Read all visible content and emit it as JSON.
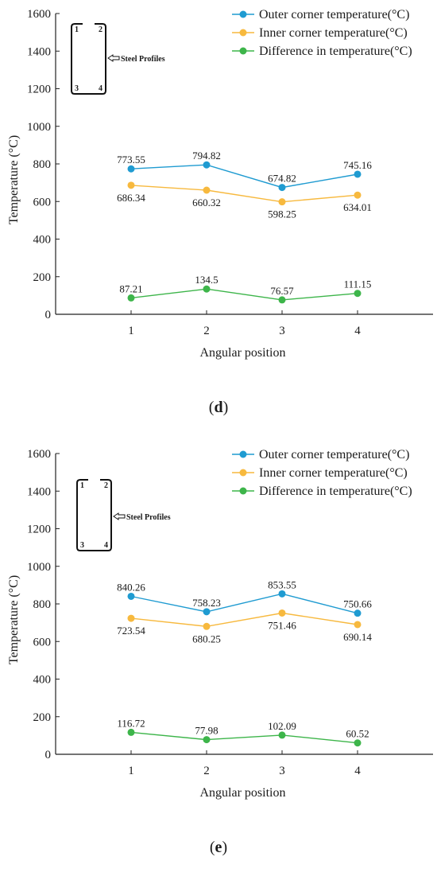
{
  "chart_data": [
    {
      "type": "line",
      "panel_label": "(d)",
      "panel_letter": "d",
      "xlabel": "Angular position",
      "ylabel": "Temperature (°C)",
      "x": [
        1,
        2,
        3,
        4
      ],
      "xlim": [
        0,
        5
      ],
      "ylim": [
        0,
        1600
      ],
      "yticks": [
        0,
        200,
        400,
        600,
        800,
        1000,
        1200,
        1400,
        1600
      ],
      "xticks": [
        1,
        2,
        3,
        4
      ],
      "legend_position": "top-right",
      "grid": false,
      "inset": {
        "label": "Steel Profiles",
        "corners": [
          "1",
          "2",
          "3",
          "4"
        ]
      },
      "series": [
        {
          "name": "Outer corner temperature(°C)",
          "color": "#1f9bd1",
          "values": [
            773.55,
            794.82,
            674.82,
            745.16
          ],
          "labels": [
            "773.55",
            "794.82",
            "674.82",
            "745.16"
          ],
          "label_pos": "above"
        },
        {
          "name": "Inner corner temperature(°C)",
          "color": "#f7b93e",
          "values": [
            686.34,
            660.32,
            598.25,
            634.01
          ],
          "labels": [
            "686.34",
            "660.32",
            "598.25",
            "634.01"
          ],
          "label_pos": "below"
        },
        {
          "name": "Difference in temperature(°C)",
          "color": "#3db54a",
          "values": [
            87.21,
            134.5,
            76.57,
            111.15
          ],
          "labels": [
            "87.21",
            "134.5",
            "76.57",
            "111.15"
          ],
          "label_pos": "above"
        }
      ]
    },
    {
      "type": "line",
      "panel_label": "(e)",
      "panel_letter": "e",
      "xlabel": "Angular position",
      "ylabel": "Temperature (°C)",
      "x": [
        1,
        2,
        3,
        4
      ],
      "xlim": [
        0,
        5
      ],
      "ylim": [
        0,
        1600
      ],
      "yticks": [
        0,
        200,
        400,
        600,
        800,
        1000,
        1200,
        1400,
        1600
      ],
      "xticks": [
        1,
        2,
        3,
        4
      ],
      "legend_position": "top-right",
      "grid": false,
      "inset": {
        "label": "Steel Profiles",
        "corners": [
          "1",
          "2",
          "3",
          "4"
        ]
      },
      "series": [
        {
          "name": "Outer corner temperature(°C)",
          "color": "#1f9bd1",
          "values": [
            840.26,
            758.23,
            853.55,
            750.66
          ],
          "labels": [
            "840.26",
            "758.23",
            "853.55",
            "750.66"
          ],
          "label_pos": "above"
        },
        {
          "name": "Inner corner temperature(°C)",
          "color": "#f7b93e",
          "values": [
            723.54,
            680.25,
            751.46,
            690.14
          ],
          "labels": [
            "723.54",
            "680.25",
            "751.46",
            "690.14"
          ],
          "label_pos": "below"
        },
        {
          "name": "Difference in temperature(°C)",
          "color": "#3db54a",
          "values": [
            116.72,
            77.98,
            102.09,
            60.52
          ],
          "labels": [
            "116.72",
            "77.98",
            "102.09",
            "60.52"
          ],
          "label_pos": "above"
        }
      ]
    }
  ]
}
